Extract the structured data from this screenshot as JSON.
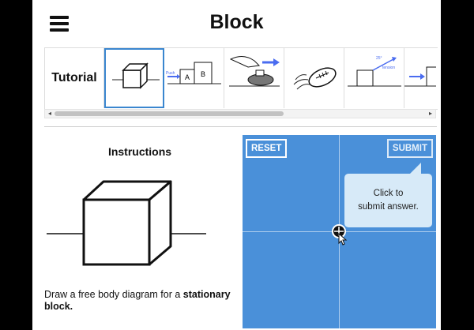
{
  "header": {
    "title": "Block"
  },
  "tutorial": {
    "label": "Tutorial",
    "thumbs": [
      {
        "name": "block",
        "selected": true
      },
      {
        "name": "push-blocks",
        "label_a": "A",
        "label_b": "B",
        "arrow_label": "Push"
      },
      {
        "name": "curling",
        "selected": false
      },
      {
        "name": "football",
        "selected": false
      },
      {
        "name": "incline",
        "angle_label": "25°",
        "arrow_label": "tension"
      },
      {
        "name": "arrow-block",
        "selected": false
      }
    ]
  },
  "instructions": {
    "title": "Instructions",
    "text_prefix": "Draw a free body diagram for a ",
    "text_bold": "stationary block."
  },
  "canvas": {
    "reset_label": "RESET",
    "submit_label": "SUBMIT",
    "tooltip_line1": "Click to",
    "tooltip_line2": "submit answer."
  },
  "colors": {
    "canvas": "#4a90d9",
    "selected": "#3a86cf",
    "arrow": "#4a6cf0"
  }
}
